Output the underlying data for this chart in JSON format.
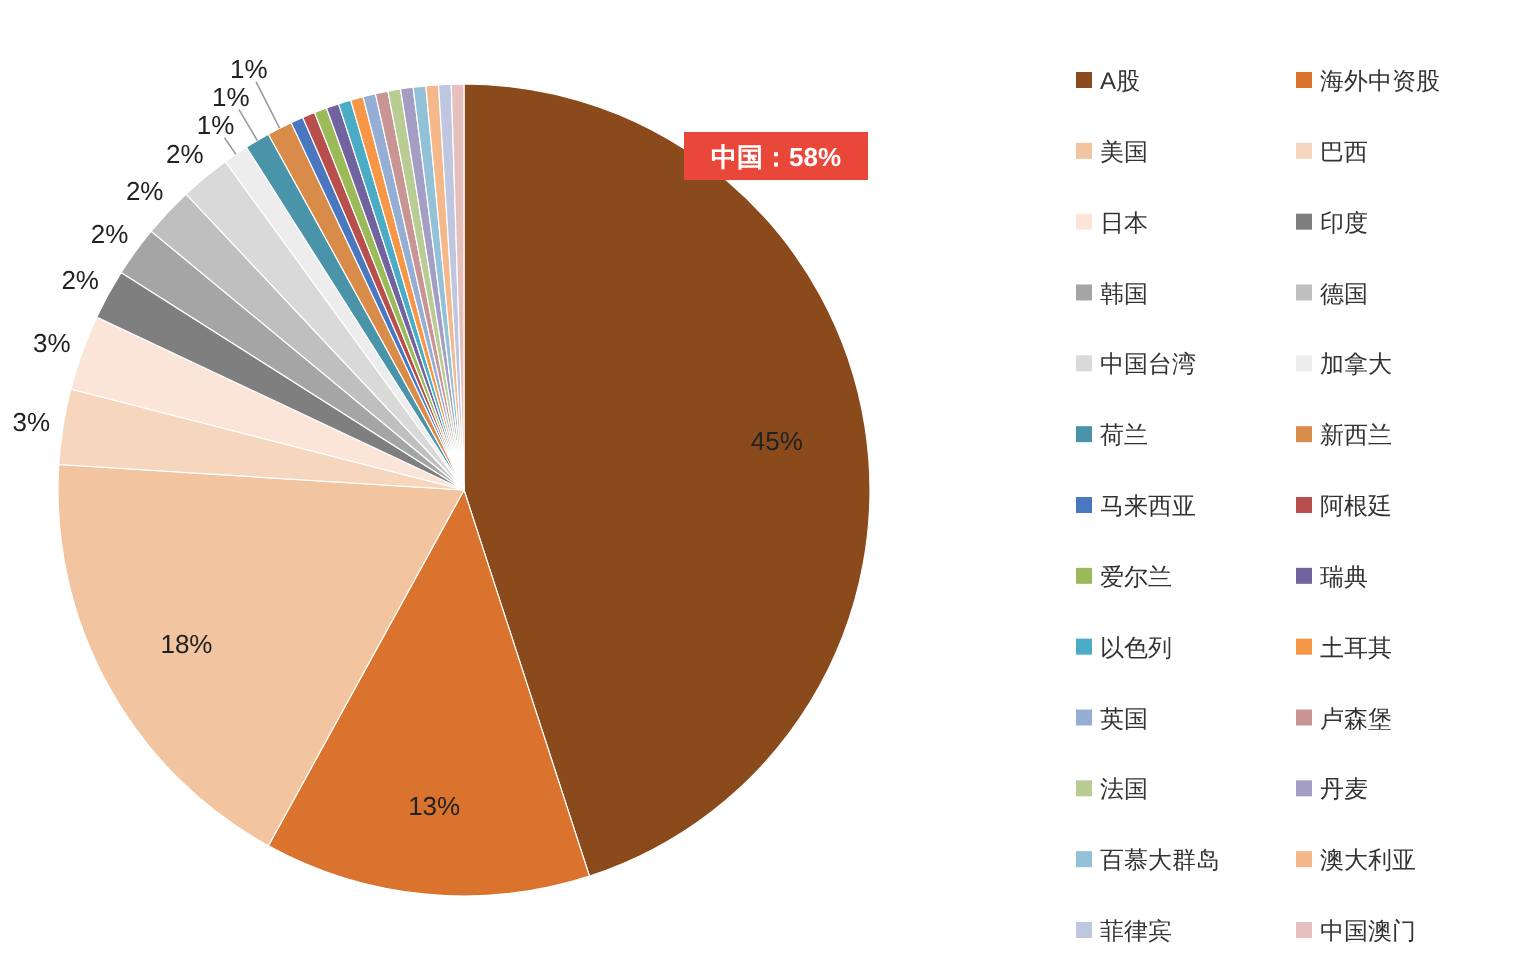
{
  "chart_data": {
    "type": "pie",
    "categories": [
      "A股",
      "海外中资股",
      "美国",
      "巴西",
      "日本",
      "印度",
      "韩国",
      "德国",
      "中国台湾",
      "加拿大",
      "荷兰",
      "新西兰",
      "马来西亚",
      "阿根廷",
      "爱尔兰",
      "瑞典",
      "以色列",
      "土耳其",
      "英国",
      "卢森堡",
      "法国",
      "丹麦",
      "百慕大群岛",
      "澳大利亚",
      "菲律宾",
      "中国澳门"
    ],
    "values": [
      45,
      13,
      18,
      3,
      3,
      2,
      2,
      2,
      2,
      1,
      1,
      1,
      0.5,
      0.5,
      0.5,
      0.5,
      0.5,
      0.5,
      0.5,
      0.5,
      0.5,
      0.5,
      0.5,
      0.5,
      0.5,
      0.5
    ],
    "colors": [
      "#8b4a1c",
      "#d9732d",
      "#f2c4a0",
      "#f6d6bd",
      "#fbe5d8",
      "#7f7f7f",
      "#a5a5a5",
      "#bfbfbf",
      "#d9d9d9",
      "#ededed",
      "#4a94a9",
      "#d98b4a",
      "#4a78c0",
      "#b84f4c",
      "#9bbb59",
      "#7163a0",
      "#4bacc6",
      "#f79646",
      "#95aed4",
      "#c89494",
      "#b8cc94",
      "#a49ec4",
      "#93c2d8",
      "#f5b88a",
      "#bfc6e0",
      "#e6bfbf"
    ],
    "value_labels": [
      "45%",
      "13%",
      "18%",
      "3%",
      "3%",
      "2%",
      "2%",
      "2%",
      "2%",
      "1%",
      "1%",
      "1%",
      null,
      null,
      null,
      null,
      null,
      null,
      null,
      null,
      null,
      null,
      null,
      null,
      null,
      null
    ],
    "legend": "right",
    "annotations": [
      "中国：58%"
    ]
  }
}
